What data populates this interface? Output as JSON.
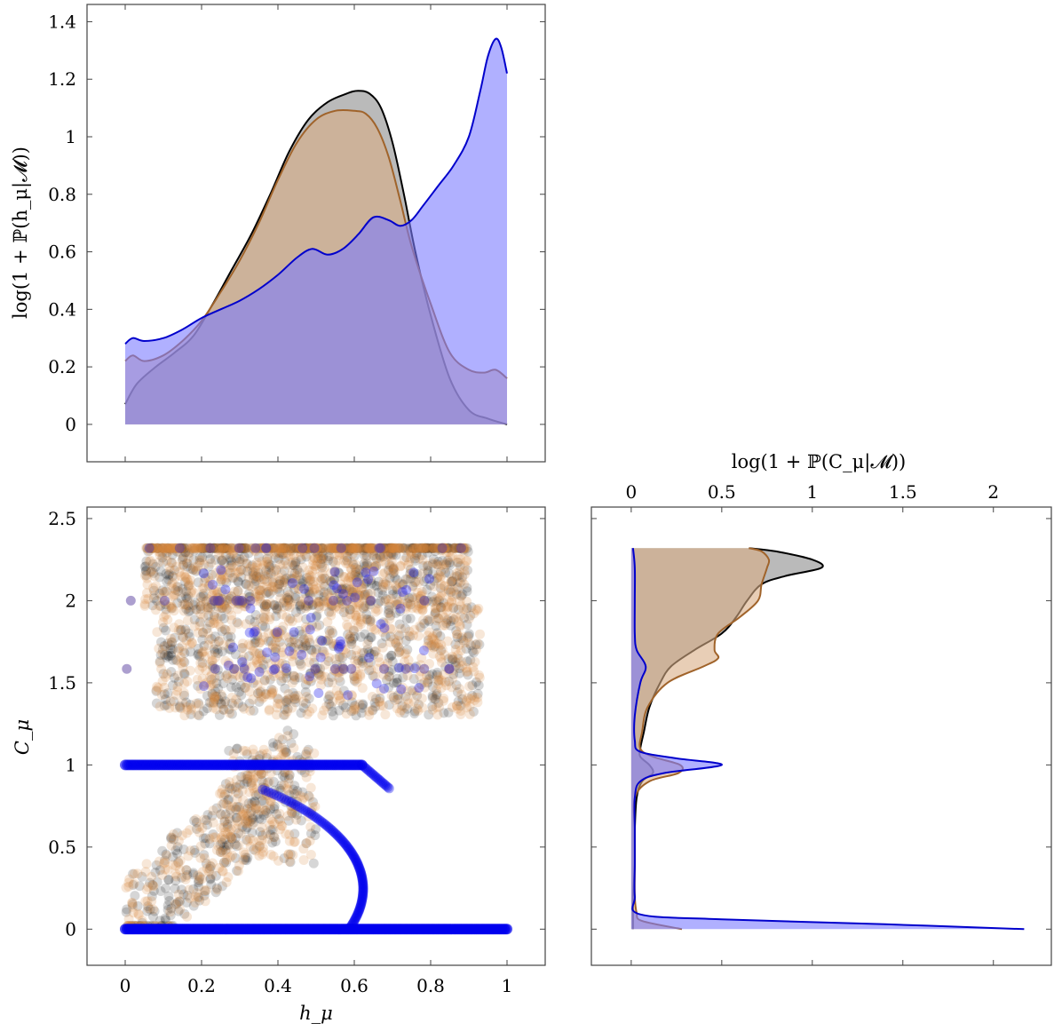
{
  "chart_data": [
    {
      "id": "top",
      "type": "area",
      "ylabel": "log(1 + ℙ(h_μ|𝓜))",
      "xlim": [
        -0.1,
        1.1
      ],
      "ylim": [
        -0.13,
        1.46
      ],
      "xticks": [
        0,
        0.2,
        0.4,
        0.6,
        0.8,
        1
      ],
      "yticks": [
        0,
        0.2,
        0.4,
        0.6,
        0.8,
        1,
        1.2,
        1.4
      ],
      "ytick_labels": [
        "0",
        "0.2",
        "0.4",
        "0.6",
        "0.8",
        "1",
        "1.2",
        "1.4"
      ],
      "series": [
        {
          "color": "#000000",
          "fill": "#8c8c8c",
          "x": [
            0,
            0.03,
            0.08,
            0.13,
            0.18,
            0.23,
            0.28,
            0.33,
            0.38,
            0.43,
            0.48,
            0.53,
            0.58,
            0.61,
            0.64,
            0.67,
            0.7,
            0.73,
            0.76,
            0.8,
            0.85,
            0.9,
            0.95,
            1.0
          ],
          "y": [
            0.07,
            0.14,
            0.2,
            0.25,
            0.31,
            0.42,
            0.54,
            0.66,
            0.8,
            0.95,
            1.06,
            1.12,
            1.15,
            1.16,
            1.15,
            1.1,
            0.98,
            0.8,
            0.6,
            0.38,
            0.16,
            0.05,
            0.02,
            0.0
          ]
        },
        {
          "color": "#a0632a",
          "fill": "#d8ad85",
          "x": [
            0,
            0.02,
            0.05,
            0.1,
            0.15,
            0.2,
            0.25,
            0.3,
            0.35,
            0.4,
            0.45,
            0.5,
            0.55,
            0.6,
            0.63,
            0.66,
            0.69,
            0.72,
            0.75,
            0.8,
            0.85,
            0.9,
            0.94,
            0.97,
            1.0
          ],
          "y": [
            0.22,
            0.24,
            0.22,
            0.24,
            0.29,
            0.36,
            0.46,
            0.57,
            0.7,
            0.85,
            0.98,
            1.06,
            1.09,
            1.09,
            1.08,
            1.03,
            0.93,
            0.78,
            0.62,
            0.42,
            0.25,
            0.19,
            0.18,
            0.19,
            0.16
          ]
        },
        {
          "color": "#0000cc",
          "fill": "#7b7bff",
          "x": [
            0,
            0.02,
            0.05,
            0.1,
            0.15,
            0.2,
            0.25,
            0.3,
            0.35,
            0.4,
            0.45,
            0.49,
            0.53,
            0.57,
            0.61,
            0.65,
            0.69,
            0.72,
            0.75,
            0.78,
            0.82,
            0.86,
            0.9,
            0.93,
            0.95,
            0.97,
            0.985,
            1.0
          ],
          "y": [
            0.28,
            0.3,
            0.29,
            0.3,
            0.33,
            0.37,
            0.4,
            0.43,
            0.47,
            0.52,
            0.58,
            0.61,
            0.59,
            0.61,
            0.66,
            0.72,
            0.71,
            0.69,
            0.71,
            0.76,
            0.83,
            0.9,
            1.0,
            1.16,
            1.28,
            1.34,
            1.31,
            1.22
          ]
        }
      ]
    },
    {
      "id": "scatter",
      "type": "scatter",
      "xlabel": "h_μ",
      "ylabel": "C_μ",
      "xlim": [
        -0.1,
        1.1
      ],
      "ylim": [
        -0.22,
        2.57
      ],
      "xticks": [
        0,
        0.2,
        0.4,
        0.6,
        0.8,
        1
      ],
      "xtick_labels": [
        "0",
        "0.2",
        "0.4",
        "0.6",
        "0.8",
        "1"
      ],
      "yticks": [
        0,
        0.5,
        1,
        1.5,
        2,
        2.5
      ],
      "ytick_labels": [
        "0",
        "0.5",
        "1",
        "1.5",
        "2",
        "2.5"
      ],
      "series": [
        {
          "color": "#000000",
          "opacity": 0.16,
          "region": "clouds",
          "count": 1400,
          "seed": 7
        },
        {
          "color": "#d9893a",
          "opacity": 0.2,
          "region": "clouds",
          "count": 1700,
          "seed": 13
        },
        {
          "color": "#0000ee",
          "opacity": 0.5,
          "region": "curve"
        }
      ]
    },
    {
      "id": "right",
      "type": "area",
      "xlabel": "log(1 + ℙ(C_μ|𝓜))",
      "xlim": [
        -0.22,
        2.32
      ],
      "xticks": [
        0,
        0.5,
        1,
        1.5,
        2
      ],
      "xtick_labels": [
        "0",
        "0.5",
        "1",
        "1.5",
        "2"
      ],
      "ylim": [
        -0.22,
        2.57
      ],
      "series": [
        {
          "color": "#000000",
          "fill": "#8c8c8c",
          "y": [
            0,
            0.05,
            0.1,
            0.2,
            0.4,
            0.6,
            0.8,
            0.9,
            0.95,
            1.0,
            1.05,
            1.1,
            1.2,
            1.35,
            1.5,
            1.6,
            1.7,
            1.8,
            1.9,
            2.0,
            2.1,
            2.15,
            2.2,
            2.25,
            2.3,
            2.32
          ],
          "v": [
            0.01,
            0.01,
            0.01,
            0.01,
            0.02,
            0.02,
            0.03,
            0.06,
            0.12,
            0.1,
            0.05,
            0.05,
            0.07,
            0.1,
            0.16,
            0.22,
            0.35,
            0.5,
            0.58,
            0.64,
            0.72,
            0.85,
            1.05,
            1.0,
            0.8,
            0.65
          ]
        },
        {
          "color": "#a0632a",
          "fill": "#d8ad85",
          "y": [
            0,
            0.05,
            0.1,
            0.2,
            0.4,
            0.6,
            0.8,
            0.9,
            0.95,
            1.0,
            1.05,
            1.1,
            1.2,
            1.35,
            1.5,
            1.6,
            1.65,
            1.7,
            1.8,
            1.9,
            2.0,
            2.1,
            2.2,
            2.25,
            2.3,
            2.32
          ],
          "v": [
            0.28,
            0.06,
            0.03,
            0.02,
            0.02,
            0.02,
            0.02,
            0.1,
            0.26,
            0.27,
            0.12,
            0.05,
            0.06,
            0.09,
            0.2,
            0.4,
            0.48,
            0.46,
            0.48,
            0.6,
            0.7,
            0.72,
            0.75,
            0.76,
            0.72,
            0.65
          ]
        },
        {
          "color": "#0000cc",
          "fill": "#7b7bff",
          "y": [
            0,
            0.03,
            0.06,
            0.09,
            0.2,
            0.4,
            0.6,
            0.8,
            0.9,
            0.95,
            1.0,
            1.04,
            1.08,
            1.15,
            1.3,
            1.5,
            1.6,
            1.7,
            1.8,
            2.0,
            2.2,
            2.32
          ],
          "v": [
            2.17,
            1.4,
            0.5,
            0.05,
            0.02,
            0.02,
            0.02,
            0.02,
            0.05,
            0.18,
            0.5,
            0.25,
            0.05,
            0.02,
            0.02,
            0.05,
            0.08,
            0.03,
            0.02,
            0.02,
            0.02,
            0.01
          ]
        }
      ]
    }
  ]
}
